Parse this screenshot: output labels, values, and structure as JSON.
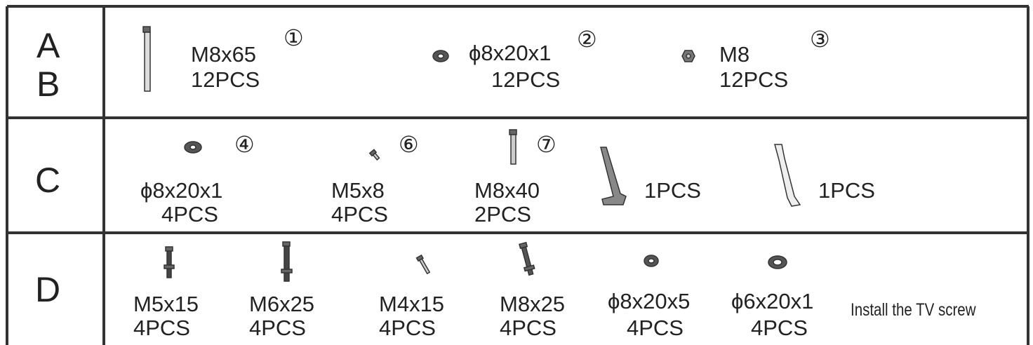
{
  "table": {
    "rows": [
      {
        "label": [
          "A",
          "B"
        ],
        "items": [
          {
            "spec": "M8x65",
            "qty": "12PCS",
            "number": "①"
          },
          {
            "spec": "ϕ8x20x1",
            "qty": "12PCS",
            "number": "②"
          },
          {
            "spec": "M8",
            "qty": "12PCS",
            "number": "③"
          }
        ]
      },
      {
        "label": [
          "C"
        ],
        "items": [
          {
            "spec": "ϕ8x20x1",
            "qty": "4PCS",
            "number": "④"
          },
          {
            "spec": "M5x8",
            "qty": "4PCS",
            "number": "⑥"
          },
          {
            "spec": "M8x40",
            "qty": "2PCS",
            "number": "⑦"
          },
          {
            "qty": "1PCS"
          },
          {
            "qty": "1PCS"
          }
        ]
      },
      {
        "label": [
          "D"
        ],
        "items": [
          {
            "spec": "M5x15",
            "qty": "4PCS"
          },
          {
            "spec": "M6x25",
            "qty": "4PCS"
          },
          {
            "spec": "M4x15",
            "qty": "4PCS"
          },
          {
            "spec": "M8x25",
            "qty": "4PCS"
          },
          {
            "spec": "ϕ8x20x5",
            "qty": "4PCS"
          },
          {
            "spec": "ϕ6x20x1",
            "qty": "4PCS"
          },
          {
            "note": "Install the TV screw"
          }
        ]
      }
    ]
  }
}
